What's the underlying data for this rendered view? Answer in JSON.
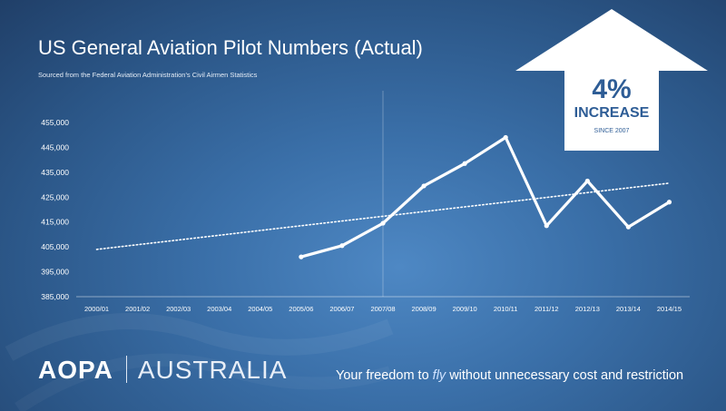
{
  "header": {
    "title": "US General Aviation Pilot Numbers (Actual)",
    "subtitle": "Sourced from the Federal Aviation Administration's Civil Airmen Statistics"
  },
  "callout": {
    "percent": "4%",
    "label": "INCREASE",
    "since": "SINCE 2007"
  },
  "footer": {
    "brand_left": "AOPA",
    "brand_right": "AUSTRALIA",
    "tagline_before": "Your freedom to ",
    "tagline_emphasis": "fly",
    "tagline_after": " without unnecessary cost and restriction"
  },
  "colors": {
    "accent": "#2e5d96",
    "line": "#ffffff"
  },
  "chart_data": {
    "type": "line",
    "categories": [
      "2000/01",
      "2001/02",
      "2002/03",
      "2003/04",
      "2004/05",
      "2005/06",
      "2006/07",
      "2007/08",
      "2008/09",
      "2009/10",
      "2010/11",
      "2011/12",
      "2012/13",
      "2013/14",
      "2014/15"
    ],
    "series": [
      {
        "style": "solid",
        "values": [
          null,
          null,
          null,
          null,
          null,
          401000,
          405500,
          414500,
          429500,
          438500,
          449000,
          413500,
          431500,
          413000,
          423000
        ]
      },
      {
        "style": "dotted",
        "values": [
          404000,
          405900,
          407800,
          409700,
          411600,
          413500,
          415400,
          417300,
          419200,
          421100,
          423000,
          424900,
          426800,
          428700,
          430600
        ]
      }
    ],
    "ylim": [
      385000,
      455000
    ],
    "yticks": [
      "385,000",
      "395,000",
      "405,000",
      "415,000",
      "425,000",
      "435,000",
      "445,000",
      "455,000"
    ],
    "highlight_category": "2007/08",
    "grid": false,
    "legend": "none"
  }
}
